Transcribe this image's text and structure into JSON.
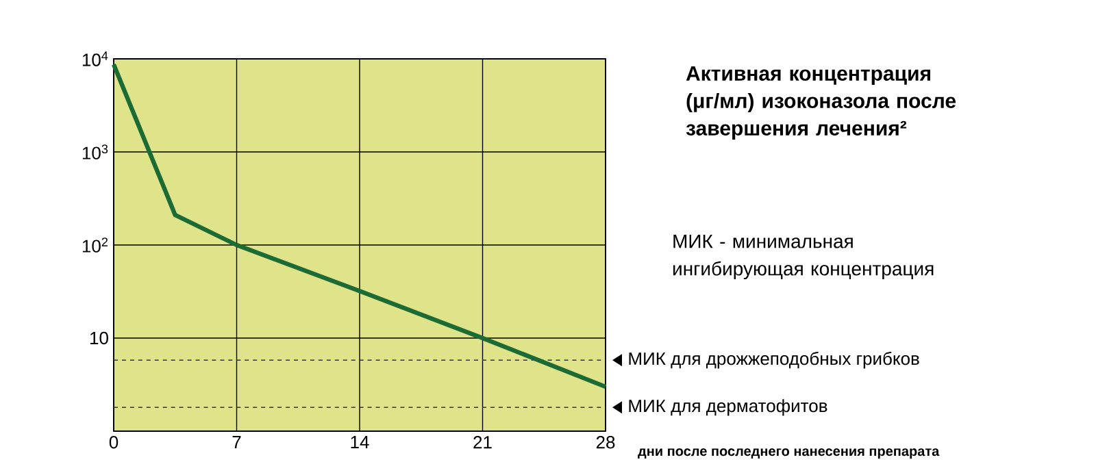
{
  "chart_data": {
    "type": "line",
    "title": "Активная концентрация (μг/мл) изоконазола после завершения лечения²",
    "xlabel": "дни после последнего нанесения препарата",
    "annotations": [
      "МИК - минимальная ингибирующая концентрация"
    ],
    "x": [
      0,
      3.5,
      7,
      14,
      21,
      28
    ],
    "series": [
      {
        "color": "#1c6b34",
        "values": [
          8700,
          210,
          100,
          32,
          10,
          3
        ]
      }
    ],
    "log": "y",
    "grid": true,
    "xlim": [
      0,
      28
    ],
    "xticks": [
      0,
      7,
      14,
      21,
      28
    ],
    "ylim": [
      1,
      10000
    ],
    "yticks": [
      {
        "value": 1,
        "label": null
      },
      {
        "value": 10,
        "label": "10"
      },
      {
        "value": 100,
        "label": "10$^{2}$"
      },
      {
        "value": 1000,
        "label": "10$^{3}$"
      },
      {
        "value": 10000,
        "label": "10$^{4}$"
      }
    ],
    "ref_lines": [
      {
        "axis": "y",
        "value": 5.8,
        "label": "МИК для дрожжеподобных грибков",
        "line_style": "dashed",
        "color": "#333333"
      },
      {
        "axis": "y",
        "value": 1.8,
        "label": "МИК для дерматофитов",
        "line_style": "dashed",
        "color": "#333333"
      }
    ]
  }
}
